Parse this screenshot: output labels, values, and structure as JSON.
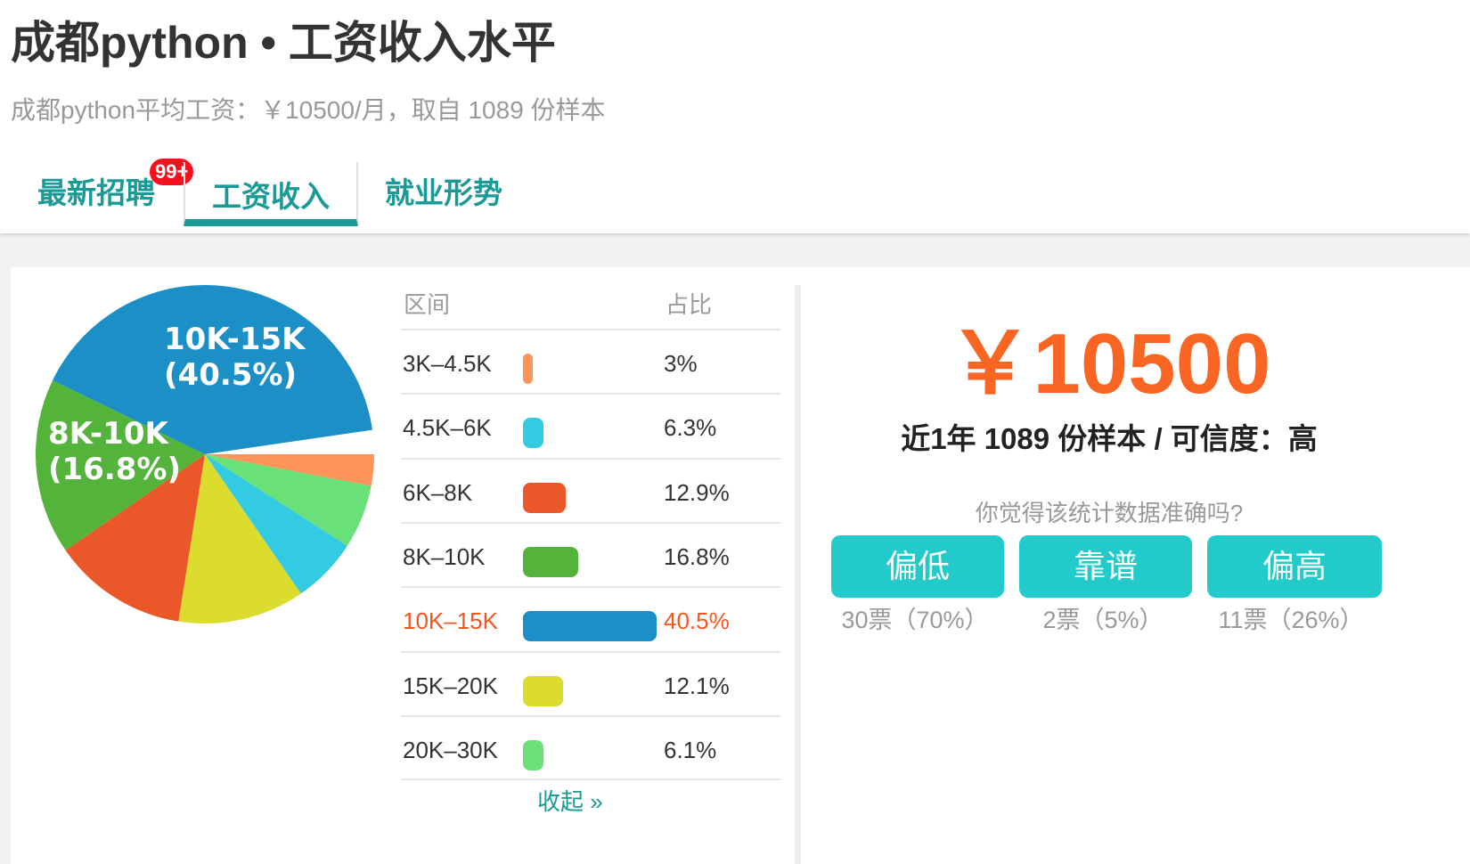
{
  "header": {
    "title": "成都python • 工资收入水平",
    "subtitle": "成都python平均工资：￥10500/月，取自 1089 份样本"
  },
  "tabs": [
    {
      "label": "最新招聘",
      "badge": "99+"
    },
    {
      "label": "工资收入",
      "active": true
    },
    {
      "label": "就业形势"
    }
  ],
  "table": {
    "col_range": "区间",
    "col_pct": "占比",
    "collapse": "收起 »"
  },
  "chart_data": {
    "type": "pie",
    "start": "3 o'clock, clockwise",
    "slices": [
      {
        "label": "3K–4.5K",
        "value": 3,
        "pct": "3%",
        "color": "#fd945a"
      },
      {
        "label": "20K–30K",
        "value": 6.1,
        "pct": "6.1%",
        "color": "#6ae079"
      },
      {
        "label": "4.5K–6K",
        "value": 6.3,
        "pct": "6.3%",
        "color": "#33cbe2"
      },
      {
        "label": "15K–20K",
        "value": 12.1,
        "pct": "12.1%",
        "color": "#dcdc2e"
      },
      {
        "label": "6K–8K",
        "value": 12.9,
        "pct": "12.9%",
        "color": "#ea582a"
      },
      {
        "label": "8K–10K",
        "value": 16.8,
        "pct": "16.8%",
        "color": "#54b33b",
        "pie_label": "8K-10K",
        "pie_pct": "(16.8%)"
      },
      {
        "label": "10K–15K",
        "value": 40.5,
        "pct": "40.5%",
        "color": "#1b8fc6",
        "pie_label": "10K-15K",
        "pie_pct": "(40.5%)"
      }
    ],
    "table_order": [
      "3K–4.5K",
      "4.5K–6K",
      "6K–8K",
      "8K–10K",
      "10K–15K",
      "15K–20K",
      "20K–30K"
    ],
    "highlight": "10K–15K"
  },
  "summary": {
    "salary": "￥10500",
    "info": "近1年 1089 份样本 / 可信度：高",
    "question": "你觉得该统计数据准确吗?"
  },
  "votes": [
    {
      "label": "偏低",
      "count": "30票（70%）"
    },
    {
      "label": "靠谱",
      "count": "2票（5%）"
    },
    {
      "label": "偏高",
      "count": "11票（26%）"
    }
  ],
  "colors": {
    "accent": "#1a9a96",
    "salary": "#f96522",
    "vote_button": "#22cbc9",
    "badge": "#f5101d"
  }
}
